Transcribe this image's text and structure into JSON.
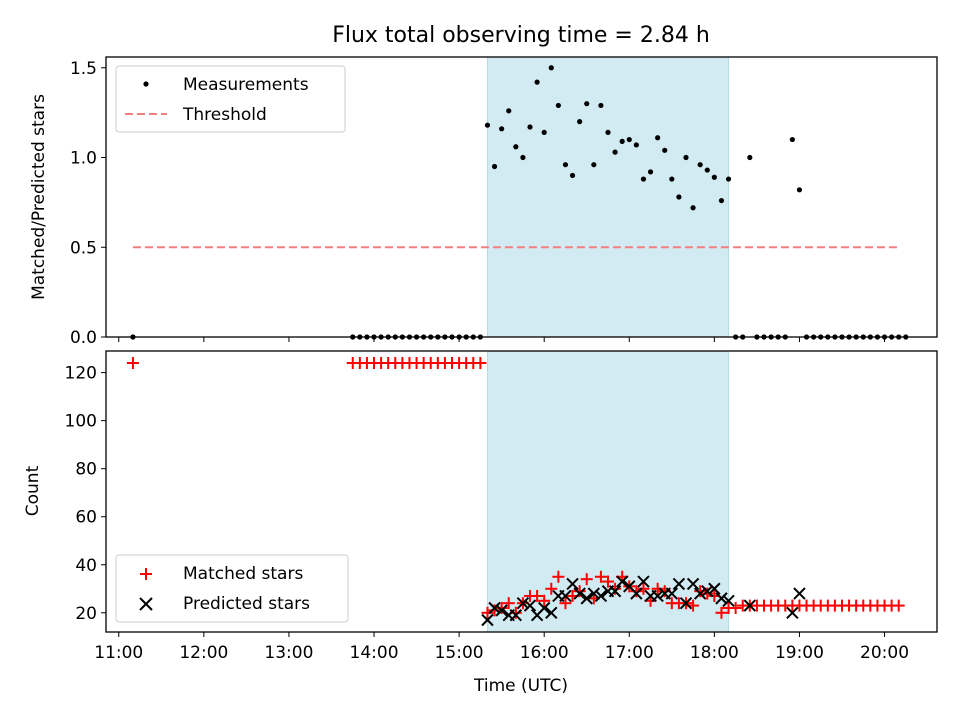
{
  "chart_data": [
    {
      "type": "scatter",
      "title": "Flux total observing time = 2.84 h",
      "xlabel": "",
      "ylabel": "Matched/Predicted stars",
      "xlim": [
        "10:51",
        "20:37"
      ],
      "ylim": [
        0,
        1.56
      ],
      "yticks": [
        "0.0",
        "0.5",
        "1.0",
        "1.5"
      ],
      "highlight_span": {
        "start": "15:20",
        "end": "18:10",
        "color": "#add8e6"
      },
      "legend": {
        "placement": "top-left"
      },
      "series": [
        {
          "name": "Measurements",
          "marker": "dot",
          "color": "#000000",
          "points": [
            [
              "11:10",
              0
            ],
            [
              "13:45",
              0
            ],
            [
              "13:50",
              0
            ],
            [
              "13:55",
              0
            ],
            [
              "14:00",
              0
            ],
            [
              "14:05",
              0
            ],
            [
              "14:10",
              0
            ],
            [
              "14:15",
              0
            ],
            [
              "14:20",
              0
            ],
            [
              "14:25",
              0
            ],
            [
              "14:30",
              0
            ],
            [
              "14:35",
              0
            ],
            [
              "14:40",
              0
            ],
            [
              "14:45",
              0
            ],
            [
              "14:50",
              0
            ],
            [
              "14:55",
              0
            ],
            [
              "15:00",
              0
            ],
            [
              "15:05",
              0
            ],
            [
              "15:10",
              0
            ],
            [
              "15:15",
              0
            ],
            [
              "15:20",
              1.18
            ],
            [
              "15:25",
              0.95
            ],
            [
              "15:30",
              1.16
            ],
            [
              "15:35",
              1.26
            ],
            [
              "15:40",
              1.06
            ],
            [
              "15:45",
              1.0
            ],
            [
              "15:50",
              1.17
            ],
            [
              "15:55",
              1.42
            ],
            [
              "16:00",
              1.14
            ],
            [
              "16:05",
              1.5
            ],
            [
              "16:10",
              1.29
            ],
            [
              "16:15",
              0.96
            ],
            [
              "16:20",
              0.9
            ],
            [
              "16:25",
              1.2
            ],
            [
              "16:30",
              1.3
            ],
            [
              "16:35",
              0.96
            ],
            [
              "16:40",
              1.29
            ],
            [
              "16:45",
              1.14
            ],
            [
              "16:50",
              1.03
            ],
            [
              "16:55",
              1.09
            ],
            [
              "17:00",
              1.1
            ],
            [
              "17:05",
              1.07
            ],
            [
              "17:10",
              0.88
            ],
            [
              "17:15",
              0.92
            ],
            [
              "17:20",
              1.11
            ],
            [
              "17:25",
              1.04
            ],
            [
              "17:30",
              0.88
            ],
            [
              "17:35",
              0.78
            ],
            [
              "17:40",
              1.0
            ],
            [
              "17:45",
              0.72
            ],
            [
              "17:50",
              0.96
            ],
            [
              "17:55",
              0.93
            ],
            [
              "18:00",
              0.89
            ],
            [
              "18:05",
              0.76
            ],
            [
              "18:10",
              0.88
            ],
            [
              "18:15",
              0
            ],
            [
              "18:20",
              0
            ],
            [
              "18:25",
              1.0
            ],
            [
              "18:30",
              0
            ],
            [
              "18:35",
              0
            ],
            [
              "18:40",
              0
            ],
            [
              "18:45",
              0
            ],
            [
              "18:50",
              0
            ],
            [
              "18:55",
              1.1
            ],
            [
              "19:00",
              0.82
            ],
            [
              "19:05",
              0
            ],
            [
              "19:10",
              0
            ],
            [
              "19:15",
              0
            ],
            [
              "19:20",
              0
            ],
            [
              "19:25",
              0
            ],
            [
              "19:30",
              0
            ],
            [
              "19:35",
              0
            ],
            [
              "19:40",
              0
            ],
            [
              "19:45",
              0
            ],
            [
              "19:50",
              0
            ],
            [
              "19:55",
              0
            ],
            [
              "20:00",
              0
            ],
            [
              "20:05",
              0
            ],
            [
              "20:10",
              0
            ],
            [
              "20:15",
              0
            ]
          ]
        },
        {
          "name": "Threshold",
          "style": "dashed",
          "color": "#f08080",
          "points": [
            [
              "11:10",
              0.5
            ],
            [
              "20:10",
              0.5
            ]
          ]
        }
      ]
    },
    {
      "type": "scatter",
      "title": "",
      "xlabel": "Time (UTC)",
      "ylabel": "Count",
      "xlim": [
        "10:51",
        "20:37"
      ],
      "ylim": [
        12,
        129
      ],
      "yticks": [
        "20",
        "40",
        "60",
        "80",
        "100",
        "120"
      ],
      "xticks": [
        "11:00",
        "12:00",
        "13:00",
        "14:00",
        "15:00",
        "16:00",
        "17:00",
        "18:00",
        "19:00",
        "20:00"
      ],
      "highlight_span": {
        "start": "15:20",
        "end": "18:10",
        "color": "#add8e6"
      },
      "legend": {
        "placement": "bottom-left"
      },
      "series": [
        {
          "name": "Matched stars",
          "marker": "plus",
          "color": "#ff0000",
          "points": [
            [
              "11:10",
              124
            ],
            [
              "13:45",
              124
            ],
            [
              "13:50",
              124
            ],
            [
              "13:55",
              124
            ],
            [
              "14:00",
              124
            ],
            [
              "14:05",
              124
            ],
            [
              "14:10",
              124
            ],
            [
              "14:15",
              124
            ],
            [
              "14:20",
              124
            ],
            [
              "14:25",
              124
            ],
            [
              "14:30",
              124
            ],
            [
              "14:35",
              124
            ],
            [
              "14:40",
              124
            ],
            [
              "14:45",
              124
            ],
            [
              "14:50",
              124
            ],
            [
              "14:55",
              124
            ],
            [
              "15:00",
              124
            ],
            [
              "15:05",
              124
            ],
            [
              "15:10",
              124
            ],
            [
              "15:15",
              124
            ],
            [
              "15:20",
              20
            ],
            [
              "15:25",
              21
            ],
            [
              "15:30",
              22
            ],
            [
              "15:35",
              24
            ],
            [
              "15:40",
              20
            ],
            [
              "15:45",
              24
            ],
            [
              "15:50",
              27
            ],
            [
              "15:55",
              27
            ],
            [
              "16:00",
              25
            ],
            [
              "16:05",
              30
            ],
            [
              "16:10",
              35
            ],
            [
              "16:15",
              24
            ],
            [
              "16:20",
              27
            ],
            [
              "16:25",
              29
            ],
            [
              "16:30",
              34
            ],
            [
              "16:35",
              26
            ],
            [
              "16:40",
              35
            ],
            [
              "16:45",
              33
            ],
            [
              "16:50",
              30
            ],
            [
              "16:55",
              35
            ],
            [
              "17:00",
              31
            ],
            [
              "17:05",
              29
            ],
            [
              "17:10",
              30
            ],
            [
              "17:15",
              25
            ],
            [
              "17:20",
              30
            ],
            [
              "17:25",
              29
            ],
            [
              "17:30",
              24
            ],
            [
              "17:35",
              24
            ],
            [
              "17:40",
              24
            ],
            [
              "17:45",
              23
            ],
            [
              "17:50",
              29
            ],
            [
              "17:55",
              28
            ],
            [
              "18:00",
              27
            ],
            [
              "18:05",
              20
            ],
            [
              "18:10",
              22
            ],
            [
              "18:15",
              22
            ],
            [
              "18:20",
              23
            ],
            [
              "18:25",
              23
            ],
            [
              "18:30",
              23
            ],
            [
              "18:35",
              23
            ],
            [
              "18:40",
              23
            ],
            [
              "18:45",
              23
            ],
            [
              "18:50",
              23
            ],
            [
              "18:55",
              23
            ],
            [
              "19:00",
              23
            ],
            [
              "19:05",
              23
            ],
            [
              "19:10",
              23
            ],
            [
              "19:15",
              23
            ],
            [
              "19:20",
              23
            ],
            [
              "19:25",
              23
            ],
            [
              "19:30",
              23
            ],
            [
              "19:35",
              23
            ],
            [
              "19:40",
              23
            ],
            [
              "19:45",
              23
            ],
            [
              "19:50",
              23
            ],
            [
              "19:55",
              23
            ],
            [
              "20:00",
              23
            ],
            [
              "20:05",
              23
            ],
            [
              "20:10",
              23
            ]
          ]
        },
        {
          "name": "Predicted stars",
          "marker": "x",
          "color": "#000000",
          "points": [
            [
              "15:20",
              17
            ],
            [
              "15:25",
              22
            ],
            [
              "15:30",
              21
            ],
            [
              "15:35",
              19
            ],
            [
              "15:40",
              19
            ],
            [
              "15:45",
              24
            ],
            [
              "15:50",
              23
            ],
            [
              "15:55",
              19
            ],
            [
              "16:00",
              22
            ],
            [
              "16:05",
              20
            ],
            [
              "16:10",
              27
            ],
            [
              "16:15",
              27
            ],
            [
              "16:20",
              32
            ],
            [
              "16:25",
              28
            ],
            [
              "16:30",
              26
            ],
            [
              "16:35",
              28
            ],
            [
              "16:40",
              27
            ],
            [
              "16:45",
              29
            ],
            [
              "16:50",
              29
            ],
            [
              "16:55",
              33
            ],
            [
              "17:00",
              31
            ],
            [
              "17:05",
              28
            ],
            [
              "17:10",
              33
            ],
            [
              "17:15",
              27
            ],
            [
              "17:20",
              27
            ],
            [
              "17:25",
              28
            ],
            [
              "17:30",
              28
            ],
            [
              "17:35",
              32
            ],
            [
              "17:40",
              24
            ],
            [
              "17:45",
              32
            ],
            [
              "17:50",
              28
            ],
            [
              "17:55",
              29
            ],
            [
              "18:00",
              30
            ],
            [
              "18:05",
              26
            ],
            [
              "18:10",
              25
            ],
            [
              "18:25",
              23
            ],
            [
              "18:55",
              20
            ],
            [
              "19:00",
              28
            ]
          ]
        }
      ]
    }
  ]
}
